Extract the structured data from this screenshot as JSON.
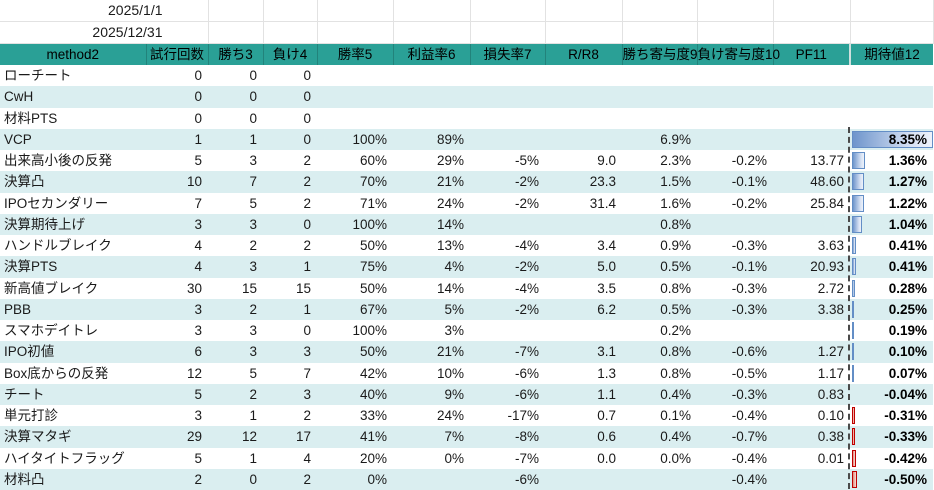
{
  "dates": {
    "start": "2025/1/1",
    "end": "2025/12/31"
  },
  "header": {
    "columns": [
      {
        "key": "method",
        "label": "method2"
      },
      {
        "key": "trials",
        "label": "試行回数"
      },
      {
        "key": "wins",
        "label": "勝ち3"
      },
      {
        "key": "losses",
        "label": "負け4"
      },
      {
        "key": "win_rate",
        "label": "勝率5"
      },
      {
        "key": "profit_rate",
        "label": "利益率6"
      },
      {
        "key": "loss_rate",
        "label": "損失率7"
      },
      {
        "key": "rr",
        "label": "R/R8"
      },
      {
        "key": "win_contrib",
        "label": "勝ち寄与度9"
      },
      {
        "key": "loss_contrib",
        "label": "負け寄与度10"
      },
      {
        "key": "pf",
        "label": "PF11"
      },
      {
        "key": "expected",
        "label": "期待値12"
      }
    ]
  },
  "databar": {
    "max": 8.35
  },
  "colors": {
    "header_bg": "#2AA096",
    "band_bg": "#DAEEF0",
    "bar_positive": "#638EC6",
    "bar_negative": "#C00000"
  },
  "rows": [
    {
      "method": "ローチート",
      "trials": "0",
      "wins": "0",
      "losses": "0",
      "win_rate": "",
      "profit_rate": "",
      "loss_rate": "",
      "rr": "",
      "win_contrib": "",
      "loss_contrib": "",
      "pf": "",
      "expected": "",
      "expected_value": null
    },
    {
      "method": "CwH",
      "trials": "0",
      "wins": "0",
      "losses": "0",
      "win_rate": "",
      "profit_rate": "",
      "loss_rate": "",
      "rr": "",
      "win_contrib": "",
      "loss_contrib": "",
      "pf": "",
      "expected": "",
      "expected_value": null
    },
    {
      "method": "材料PTS",
      "trials": "0",
      "wins": "0",
      "losses": "0",
      "win_rate": "",
      "profit_rate": "",
      "loss_rate": "",
      "rr": "",
      "win_contrib": "",
      "loss_contrib": "",
      "pf": "",
      "expected": "",
      "expected_value": null
    },
    {
      "method": "VCP",
      "trials": "1",
      "wins": "1",
      "losses": "0",
      "win_rate": "100%",
      "profit_rate": "89%",
      "loss_rate": "",
      "rr": "",
      "win_contrib": "6.9%",
      "loss_contrib": "",
      "pf": "",
      "expected": "8.35%",
      "expected_value": 8.35
    },
    {
      "method": "出来高小後の反発",
      "trials": "5",
      "wins": "3",
      "losses": "2",
      "win_rate": "60%",
      "profit_rate": "29%",
      "loss_rate": "-5%",
      "rr": "9.0",
      "win_contrib": "2.3%",
      "loss_contrib": "-0.2%",
      "pf": "13.77",
      "expected": "1.36%",
      "expected_value": 1.36
    },
    {
      "method": "決算凸",
      "trials": "10",
      "wins": "7",
      "losses": "2",
      "win_rate": "70%",
      "profit_rate": "21%",
      "loss_rate": "-2%",
      "rr": "23.3",
      "win_contrib": "1.5%",
      "loss_contrib": "-0.1%",
      "pf": "48.60",
      "expected": "1.27%",
      "expected_value": 1.27
    },
    {
      "method": "IPOセカンダリー",
      "trials": "7",
      "wins": "5",
      "losses": "2",
      "win_rate": "71%",
      "profit_rate": "24%",
      "loss_rate": "-2%",
      "rr": "31.4",
      "win_contrib": "1.6%",
      "loss_contrib": "-0.2%",
      "pf": "25.84",
      "expected": "1.22%",
      "expected_value": 1.22
    },
    {
      "method": "決算期待上げ",
      "trials": "3",
      "wins": "3",
      "losses": "0",
      "win_rate": "100%",
      "profit_rate": "14%",
      "loss_rate": "",
      "rr": "",
      "win_contrib": "0.8%",
      "loss_contrib": "",
      "pf": "",
      "expected": "1.04%",
      "expected_value": 1.04
    },
    {
      "method": "ハンドルブレイク",
      "trials": "4",
      "wins": "2",
      "losses": "2",
      "win_rate": "50%",
      "profit_rate": "13%",
      "loss_rate": "-4%",
      "rr": "3.4",
      "win_contrib": "0.9%",
      "loss_contrib": "-0.3%",
      "pf": "3.63",
      "expected": "0.41%",
      "expected_value": 0.41
    },
    {
      "method": "決算PTS",
      "trials": "4",
      "wins": "3",
      "losses": "1",
      "win_rate": "75%",
      "profit_rate": "4%",
      "loss_rate": "-2%",
      "rr": "5.0",
      "win_contrib": "0.5%",
      "loss_contrib": "-0.1%",
      "pf": "20.93",
      "expected": "0.41%",
      "expected_value": 0.41
    },
    {
      "method": "新高値ブレイク",
      "trials": "30",
      "wins": "15",
      "losses": "15",
      "win_rate": "50%",
      "profit_rate": "14%",
      "loss_rate": "-4%",
      "rr": "3.5",
      "win_contrib": "0.8%",
      "loss_contrib": "-0.3%",
      "pf": "2.72",
      "expected": "0.28%",
      "expected_value": 0.28
    },
    {
      "method": "PBB",
      "trials": "3",
      "wins": "2",
      "losses": "1",
      "win_rate": "67%",
      "profit_rate": "5%",
      "loss_rate": "-2%",
      "rr": "6.2",
      "win_contrib": "0.5%",
      "loss_contrib": "-0.3%",
      "pf": "3.38",
      "expected": "0.25%",
      "expected_value": 0.25
    },
    {
      "method": "スマホデイトレ",
      "trials": "3",
      "wins": "3",
      "losses": "0",
      "win_rate": "100%",
      "profit_rate": "3%",
      "loss_rate": "",
      "rr": "",
      "win_contrib": "0.2%",
      "loss_contrib": "",
      "pf": "",
      "expected": "0.19%",
      "expected_value": 0.19
    },
    {
      "method": "IPO初値",
      "trials": "6",
      "wins": "3",
      "losses": "3",
      "win_rate": "50%",
      "profit_rate": "21%",
      "loss_rate": "-7%",
      "rr": "3.1",
      "win_contrib": "0.8%",
      "loss_contrib": "-0.6%",
      "pf": "1.27",
      "expected": "0.10%",
      "expected_value": 0.1
    },
    {
      "method": "Box底からの反発",
      "trials": "12",
      "wins": "5",
      "losses": "7",
      "win_rate": "42%",
      "profit_rate": "10%",
      "loss_rate": "-6%",
      "rr": "1.3",
      "win_contrib": "0.8%",
      "loss_contrib": "-0.5%",
      "pf": "1.17",
      "expected": "0.07%",
      "expected_value": 0.07
    },
    {
      "method": "チート",
      "trials": "5",
      "wins": "2",
      "losses": "3",
      "win_rate": "40%",
      "profit_rate": "9%",
      "loss_rate": "-6%",
      "rr": "1.1",
      "win_contrib": "0.4%",
      "loss_contrib": "-0.3%",
      "pf": "0.83",
      "expected": "-0.04%",
      "expected_value": -0.04
    },
    {
      "method": "単元打診",
      "trials": "3",
      "wins": "1",
      "losses": "2",
      "win_rate": "33%",
      "profit_rate": "24%",
      "loss_rate": "-17%",
      "rr": "0.7",
      "win_contrib": "0.1%",
      "loss_contrib": "-0.4%",
      "pf": "0.10",
      "expected": "-0.31%",
      "expected_value": -0.31
    },
    {
      "method": "決算マタギ",
      "trials": "29",
      "wins": "12",
      "losses": "17",
      "win_rate": "41%",
      "profit_rate": "7%",
      "loss_rate": "-8%",
      "rr": "0.6",
      "win_contrib": "0.4%",
      "loss_contrib": "-0.7%",
      "pf": "0.38",
      "expected": "-0.33%",
      "expected_value": -0.33
    },
    {
      "method": "ハイタイトフラッグ",
      "trials": "5",
      "wins": "1",
      "losses": "4",
      "win_rate": "20%",
      "profit_rate": "0%",
      "loss_rate": "-7%",
      "rr": "0.0",
      "win_contrib": "0.0%",
      "loss_contrib": "-0.4%",
      "pf": "0.01",
      "expected": "-0.42%",
      "expected_value": -0.42
    },
    {
      "method": "材料凸",
      "trials": "2",
      "wins": "0",
      "losses": "2",
      "win_rate": "0%",
      "profit_rate": "",
      "loss_rate": "-6%",
      "rr": "",
      "win_contrib": "",
      "loss_contrib": "-0.4%",
      "pf": "",
      "expected": "-0.50%",
      "expected_value": -0.5
    }
  ]
}
